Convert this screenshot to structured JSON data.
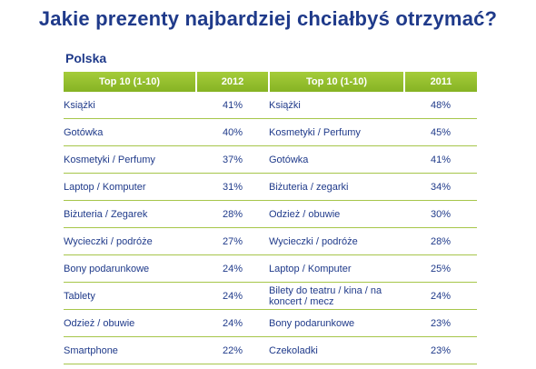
{
  "title": "Jakie prezenty najbardziej chciałbyś otrzymać?",
  "subtitle": "Polska",
  "chart_data": {
    "type": "table",
    "columns": [
      "Top 10 (1-10)",
      "2012",
      "Top 10 (1-10)",
      "2011"
    ],
    "rows": [
      [
        "Książki",
        "41%",
        "Książki",
        "48%"
      ],
      [
        "Gotówka",
        "40%",
        "Kosmetyki / Perfumy",
        "45%"
      ],
      [
        "Kosmetyki / Perfumy",
        "37%",
        "Gotówka",
        "41%"
      ],
      [
        "Laptop / Komputer",
        "31%",
        "Biżuteria / zegarki",
        "34%"
      ],
      [
        "Biżuteria / Zegarek",
        "28%",
        "Odzież / obuwie",
        "30%"
      ],
      [
        "Wycieczki / podróże",
        "27%",
        "Wycieczki / podróże",
        "28%"
      ],
      [
        "Bony podarunkowe",
        "24%",
        "Laptop / Komputer",
        "25%"
      ],
      [
        "Tablety",
        "24%",
        "Bilety do teatru / kina / na koncert / mecz",
        "24%"
      ],
      [
        "Odzież / obuwie",
        "24%",
        "Bony podarunkowe",
        "23%"
      ],
      [
        "Smartphone",
        "22%",
        "Czekoladki",
        "23%"
      ]
    ]
  },
  "colors": {
    "header_green": "#8fbc2b",
    "text_blue": "#1f3a8a",
    "rule_green": "#a6c64a"
  }
}
